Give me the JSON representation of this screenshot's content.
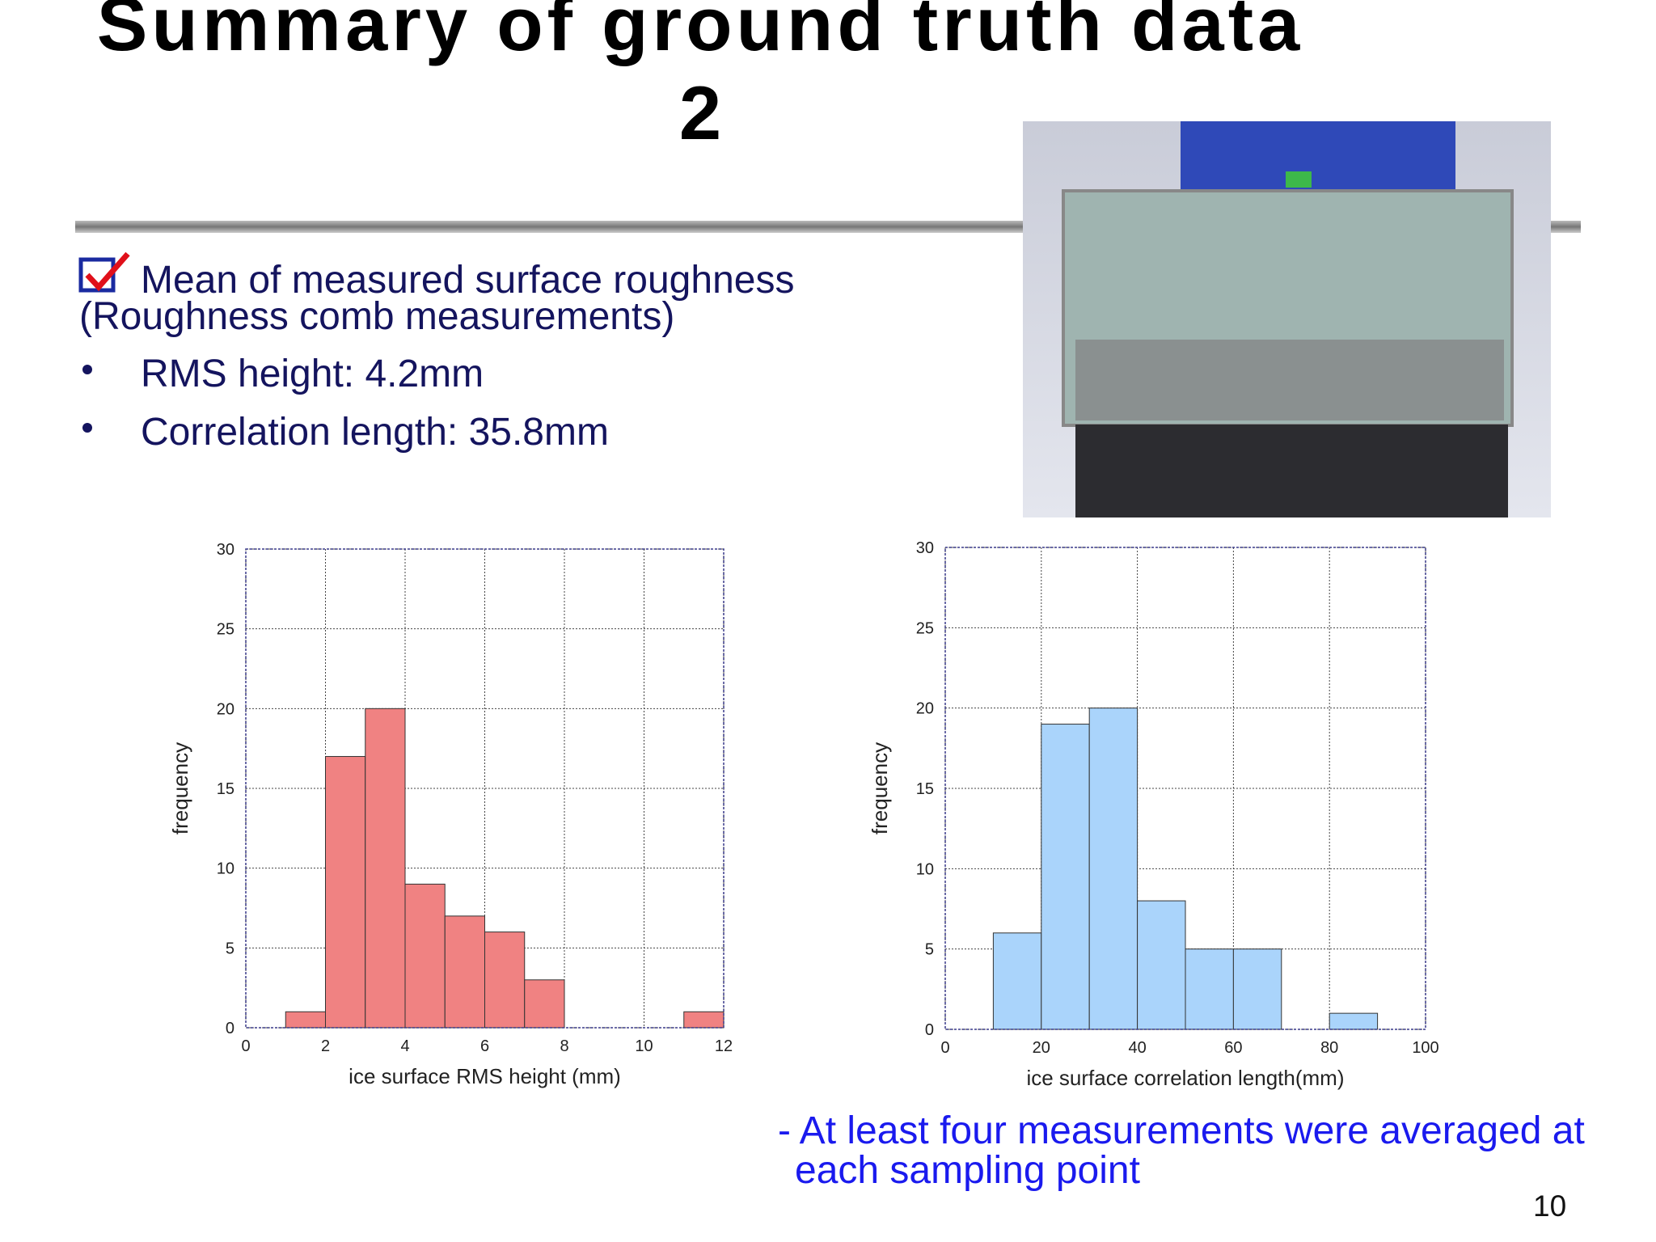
{
  "title": [
    "Summary of ground truth data",
    "2"
  ],
  "item_header": [
    "Mean of measured surface roughness",
    "(Roughness comb measurements)"
  ],
  "bullets": [
    "RMS height: 4.2mm",
    "Correlation length: 35.8mm"
  ],
  "footnote": [
    "- At least four measurements were averaged at",
    "each sampling point"
  ],
  "page_number": "10",
  "chart_data": [
    {
      "type": "histogram",
      "bins": [
        0,
        1,
        2,
        3,
        4,
        5,
        6,
        7,
        8,
        9,
        10,
        11,
        12
      ],
      "values": [
        0,
        1,
        17,
        20,
        9,
        7,
        6,
        3,
        0,
        0,
        0,
        1
      ],
      "color": "#f08282",
      "xlim": [
        0,
        12
      ],
      "xticks": [
        0,
        2,
        4,
        6,
        8,
        10,
        12
      ],
      "ylim": [
        0,
        30
      ],
      "yticks": [
        0,
        5,
        10,
        15,
        20,
        25,
        30
      ],
      "xlabel": "ice surface RMS height (mm)",
      "ylabel": "frequency",
      "grid": true
    },
    {
      "type": "histogram",
      "bins": [
        0,
        10,
        20,
        30,
        40,
        50,
        60,
        70,
        80,
        90,
        100
      ],
      "values": [
        0,
        6,
        19,
        20,
        8,
        5,
        5,
        0,
        1,
        0
      ],
      "color": "#aad4fb",
      "xlim": [
        0,
        100
      ],
      "xticks": [
        0,
        20,
        40,
        60,
        80,
        100
      ],
      "ylim": [
        0,
        30
      ],
      "yticks": [
        0,
        5,
        10,
        15,
        20,
        25,
        30
      ],
      "xlabel": "ice surface correlation length(mm)",
      "ylabel": "frequency",
      "grid": true
    }
  ]
}
